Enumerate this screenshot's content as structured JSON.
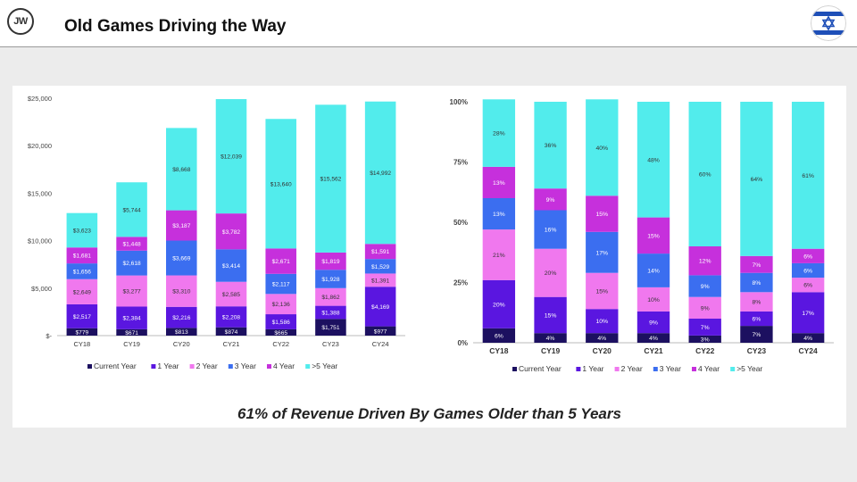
{
  "header": {
    "logo_text": "JW",
    "title": "Old Games Driving the Way",
    "flag_icon": "israel-flag-icon"
  },
  "colors": {
    "Current Year": "#1c1060",
    "1 Year": "#5a16e0",
    "2 Year": "#f078ee",
    "3 Year": "#3b6ef0",
    "4 Year": "#c630dc",
    ">5 Year": "#52ecec"
  },
  "caption": "61% of Revenue Driven By Games Older than 5 Years",
  "chart_data": [
    {
      "type": "bar",
      "stacked": true,
      "categories": [
        "CY18",
        "CY19",
        "CY20",
        "CY21",
        "CY22",
        "CY23",
        "CY24"
      ],
      "ylim": [
        0,
        25000
      ],
      "yticks": [
        "$-",
        "$5,000",
        "$10,000",
        "$15,000",
        "$20,000",
        "$25,000"
      ],
      "grid": false,
      "legend": "bottom",
      "series": [
        {
          "name": "Current Year",
          "values": [
            779,
            671,
            813,
            874,
            665,
            1751,
            977
          ],
          "labels": [
            "$779",
            "$671",
            "$813",
            "$874",
            "$665",
            "$1,751",
            "$977"
          ]
        },
        {
          "name": "1 Year",
          "values": [
            2517,
            2384,
            2216,
            2208,
            1586,
            1388,
            4169
          ],
          "labels": [
            "$2,517",
            "$2,384",
            "$2,216",
            "$2,208",
            "$1,586",
            "$1,388",
            "$4,169"
          ]
        },
        {
          "name": "2 Year",
          "values": [
            2649,
            3277,
            3310,
            2585,
            2136,
            1862,
            1391
          ],
          "labels": [
            "$2,649",
            "$3,277",
            "$3,310",
            "$2,585",
            "$2,136",
            "$1,862",
            "$1,391"
          ]
        },
        {
          "name": "3 Year",
          "values": [
            1656,
            2618,
            3669,
            3414,
            2117,
            1928,
            1529
          ],
          "labels": [
            "$1,656",
            "$2,618",
            "$3,669",
            "$3,414",
            "$2,117",
            "$1,928",
            "$1,529"
          ]
        },
        {
          "name": "4 Year",
          "values": [
            1681,
            1448,
            3187,
            3782,
            2671,
            1819,
            1591
          ],
          "labels": [
            "$1,681",
            "$1,448",
            "$3,187",
            "$3,782",
            "$2,671",
            "$1,819",
            "$1,591"
          ]
        },
        {
          "name": ">5 Year",
          "values": [
            3623,
            5744,
            8668,
            12039,
            13640,
            15562,
            14992
          ],
          "labels": [
            "$3,623",
            "$5,744",
            "$8,668",
            "$12,039",
            "$13,640",
            "$15,562",
            "$14,992"
          ]
        }
      ]
    },
    {
      "type": "bar",
      "stacked": true,
      "percent": true,
      "categories": [
        "CY18",
        "CY19",
        "CY20",
        "CY21",
        "CY22",
        "CY23",
        "CY24"
      ],
      "ylim": [
        0,
        100
      ],
      "yticks": [
        "0%",
        "25%",
        "50%",
        "75%",
        "100%"
      ],
      "grid": false,
      "legend": "bottom",
      "series": [
        {
          "name": "Current Year",
          "values": [
            6,
            4,
            4,
            4,
            3,
            7,
            4
          ],
          "labels": [
            "6%",
            "4%",
            "4%",
            "4%",
            "3%",
            "7%",
            "4%"
          ]
        },
        {
          "name": "1 Year",
          "values": [
            20,
            15,
            10,
            9,
            7,
            6,
            17
          ],
          "labels": [
            "20%",
            "15%",
            "10%",
            "9%",
            "7%",
            "6%",
            "17%"
          ]
        },
        {
          "name": "2 Year",
          "values": [
            21,
            20,
            15,
            10,
            9,
            8,
            6
          ],
          "labels": [
            "21%",
            "20%",
            "15%",
            "10%",
            "9%",
            "8%",
            "6%"
          ]
        },
        {
          "name": "3 Year",
          "values": [
            13,
            16,
            17,
            14,
            9,
            8,
            6
          ],
          "labels": [
            "13%",
            "16%",
            "17%",
            "14%",
            "9%",
            "8%",
            "6%"
          ]
        },
        {
          "name": "4 Year",
          "values": [
            13,
            9,
            15,
            15,
            12,
            7,
            6
          ],
          "labels": [
            "13%",
            "9%",
            "15%",
            "15%",
            "12%",
            "7%",
            "6%"
          ]
        },
        {
          "name": ">5 Year",
          "values": [
            28,
            36,
            40,
            48,
            60,
            64,
            61
          ],
          "labels": [
            "28%",
            "36%",
            "40%",
            "48%",
            "60%",
            "64%",
            "61%"
          ]
        }
      ]
    }
  ]
}
